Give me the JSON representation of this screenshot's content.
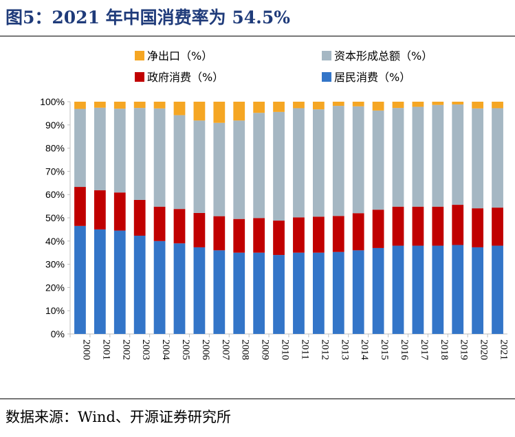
{
  "header": {
    "title": "图5：2021 年中国消费率为 54.5%"
  },
  "footer": {
    "source": "数据来源：Wind、开源证券研究所"
  },
  "chart_data": {
    "type": "bar",
    "stacked": true,
    "title": "",
    "xlabel": "",
    "ylabel": "",
    "ylim": [
      0,
      100
    ],
    "yticks": [
      "0%",
      "10%",
      "20%",
      "30%",
      "40%",
      "50%",
      "60%",
      "70%",
      "80%",
      "90%",
      "100%"
    ],
    "legend_position": "top",
    "categories": [
      "2000",
      "2001",
      "2002",
      "2003",
      "2004",
      "2005",
      "2006",
      "2007",
      "2008",
      "2009",
      "2010",
      "2011",
      "2012",
      "2013",
      "2014",
      "2015",
      "2016",
      "2017",
      "2018",
      "2019",
      "2020",
      "2021"
    ],
    "series": [
      {
        "name": "居民消费（%）",
        "color": "#3375c8",
        "values": [
          46.5,
          45,
          44.5,
          42.3,
          40,
          39,
          37.3,
          36,
          35,
          35,
          34,
          35,
          35,
          35.3,
          36,
          37,
          38,
          38,
          38,
          38.3,
          37.3,
          38
        ]
      },
      {
        "name": "政府消费（%）",
        "color": "#c00000",
        "values": [
          16.8,
          16.9,
          16.4,
          15.4,
          14.8,
          14.8,
          14.8,
          14.7,
          14.5,
          14.9,
          14.8,
          15.2,
          15.5,
          15.5,
          16,
          16.5,
          16.8,
          16.8,
          16.8,
          17.3,
          16.8,
          16.4
        ]
      },
      {
        "name": "资本形成总额（%）",
        "color": "#a5b7c3",
        "values": [
          33.6,
          35.5,
          36.1,
          39.6,
          42.3,
          40.4,
          39.8,
          40.2,
          42.4,
          45.3,
          46.8,
          47,
          46.2,
          47.4,
          46,
          42.7,
          42.5,
          43,
          43.8,
          43.2,
          43,
          42.8
        ]
      },
      {
        "name": "净出口（%）",
        "color": "#f5a623",
        "values": [
          3.1,
          2.6,
          3.0,
          2.7,
          2.9,
          5.8,
          8.1,
          9.1,
          8.1,
          4.8,
          4.4,
          2.8,
          3.3,
          1.8,
          2.0,
          3.8,
          2.7,
          2.2,
          1.4,
          1.2,
          2.9,
          2.8
        ]
      }
    ]
  }
}
